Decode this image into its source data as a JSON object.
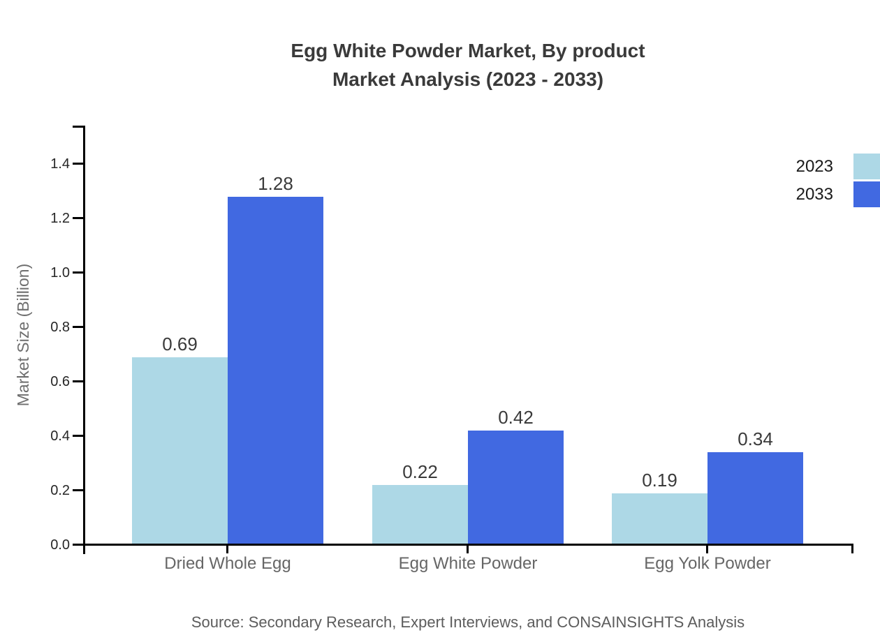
{
  "title": {
    "line1": "Egg White Powder Market, By product",
    "line2": "Market Analysis (2023 - 2033)"
  },
  "source_note": "Source: Secondary Research, Expert Interviews, and CONSAINSIGHTS Analysis",
  "colors": {
    "series_2023": "#ADD8E6",
    "series_2033": "#4169E1",
    "axis": "#000000",
    "title_text": "#3A3A3A",
    "muted_text": "#666666"
  },
  "chart_data": {
    "type": "bar",
    "title": "Egg White Powder Market, By product Market Analysis (2023 - 2033)",
    "categories": [
      "Dried Whole Egg",
      "Egg White Powder",
      "Egg Yolk Powder"
    ],
    "series": [
      {
        "name": "2023",
        "color": "#ADD8E6",
        "values": [
          0.69,
          0.22,
          0.19
        ],
        "labels": [
          "0.69",
          "0.22",
          "0.19"
        ]
      },
      {
        "name": "2033",
        "color": "#4169E1",
        "values": [
          1.28,
          0.42,
          0.34
        ],
        "labels": [
          "1.28",
          "0.42",
          "0.34"
        ]
      }
    ],
    "xlabel": "",
    "ylabel": "Market Size (Billion)",
    "ylim": [
      0,
      1.54
    ],
    "yticks": [
      "0.0",
      "0.2",
      "0.4",
      "0.6",
      "0.8",
      "1.0",
      "1.2",
      "1.4"
    ],
    "grid": false,
    "legend_position": "top-right"
  }
}
